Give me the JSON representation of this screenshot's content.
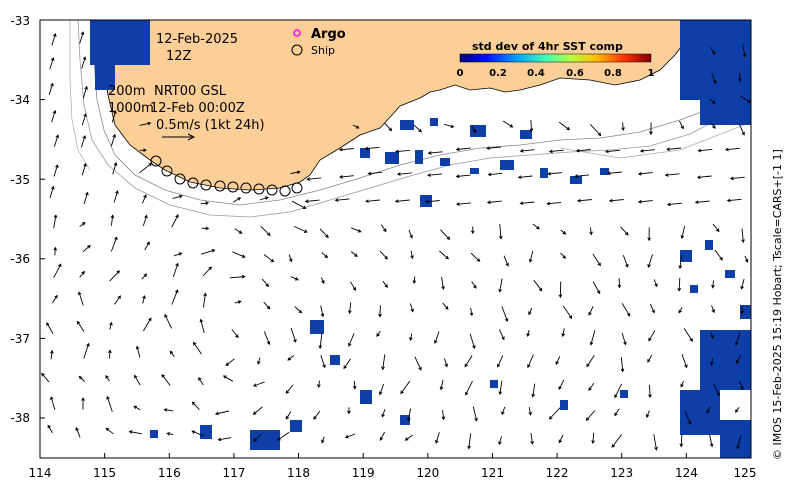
{
  "map": {
    "lon_ticks": [
      "114",
      "115",
      "116",
      "117",
      "118",
      "119",
      "120",
      "121",
      "122",
      "123",
      "124",
      "125"
    ],
    "lat_ticks": [
      "-33",
      "-34",
      "-35",
      "-36",
      "-37",
      "-38"
    ],
    "lon_range": [
      114,
      125
    ],
    "lat_range": [
      -33,
      -38.5
    ],
    "land_color": "#fccf98",
    "sst_patch_color": "#0e3fa8"
  },
  "annotations": {
    "date": "12-Feb-2025",
    "hour": "12Z",
    "depth_200": "200m",
    "depth_1000": "1000m",
    "product": "NRT00 GSL",
    "product_date": "12-Feb 00:00Z",
    "speed_scale": "0.5m/s (1kt 24h)"
  },
  "legend": {
    "argo_label": "Argo",
    "argo_color": "#ff00ff",
    "ship_label": "Ship"
  },
  "colorbar": {
    "title": "std dev of 4hr SST comp",
    "ticks": [
      "0",
      "0.2",
      "0.4",
      "0.6",
      "0.8",
      "1"
    ],
    "colors": [
      "#00007f",
      "#0010ff",
      "#00a4ff",
      "#40ffb7",
      "#b7ff40",
      "#ffb900",
      "#ff3000",
      "#7f0000"
    ]
  },
  "credit": "© IMOS 15-Feb-2025 15:19 Hobart; Tscale=CARS+[-1 1]"
}
